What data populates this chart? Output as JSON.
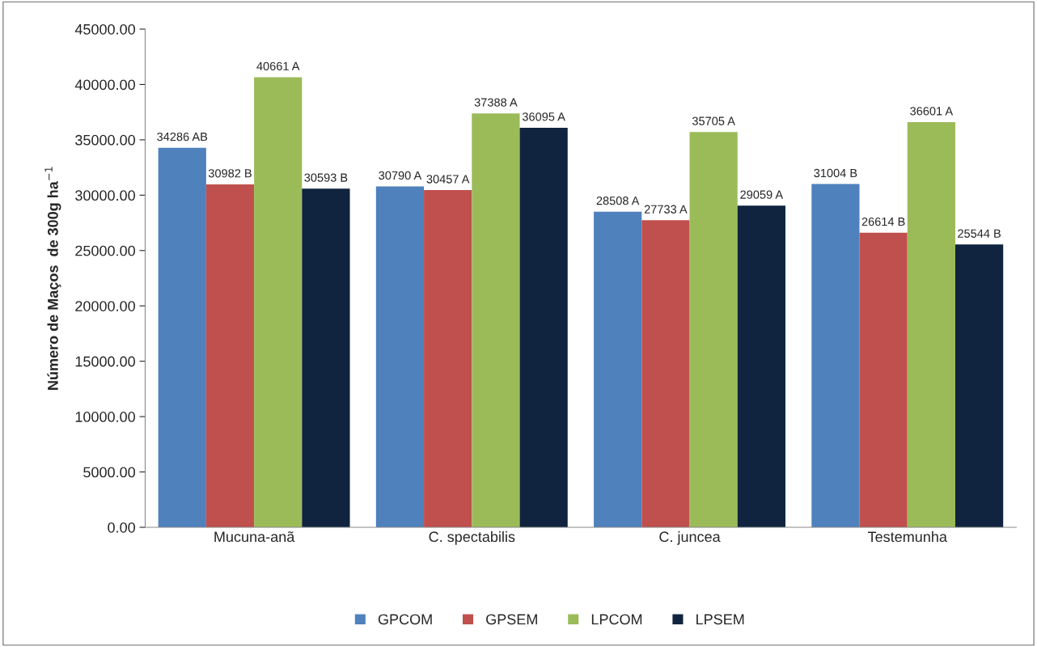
{
  "chart_data": {
    "type": "bar",
    "ylabel": "Número de Maços  de 300g ha$^{−1}$",
    "categories": [
      "Mucuna-anã",
      "C. spectabilis",
      "C. juncea",
      "Testemunha"
    ],
    "series": [
      {
        "name": "GPCOM",
        "color": "#4f81bd",
        "values": [
          34286,
          30790,
          28508,
          31004
        ],
        "value_labels": [
          "34286 AB",
          "30790 A",
          "28508 A",
          "31004 B"
        ]
      },
      {
        "name": "GPSEM",
        "color": "#c0504d",
        "values": [
          30982,
          30457,
          27733,
          26614
        ],
        "value_labels": [
          "30982 B",
          "30457 A",
          "27733 A",
          "26614 B"
        ]
      },
      {
        "name": "LPCOM",
        "color": "#9bbb59",
        "values": [
          40661,
          37388,
          35705,
          36601
        ],
        "value_labels": [
          "40661 A",
          "37388 A",
          "35705 A",
          "36601 A"
        ]
      },
      {
        "name": "LPSEM",
        "color": "#10243f",
        "values": [
          30593,
          36095,
          29059,
          25544
        ],
        "value_labels": [
          "30593 B",
          "36095 A",
          "29059 A",
          "25544 B"
        ]
      }
    ],
    "ylim": [
      0,
      45000
    ],
    "yticks": [
      {
        "value": 0,
        "label": "0.00"
      },
      {
        "value": 5000,
        "label": "5000.00"
      },
      {
        "value": 10000,
        "label": "10000.00"
      },
      {
        "value": 15000,
        "label": "15000.00"
      },
      {
        "value": 20000,
        "label": "20000.00"
      },
      {
        "value": 25000,
        "label": "25000.00"
      },
      {
        "value": 30000,
        "label": "30000.00"
      },
      {
        "value": 35000,
        "label": "35000.00"
      },
      {
        "value": 40000,
        "label": "40000.00"
      },
      {
        "value": 45000,
        "label": "45000.00"
      }
    ],
    "grid": false,
    "legend": "bottom"
  }
}
